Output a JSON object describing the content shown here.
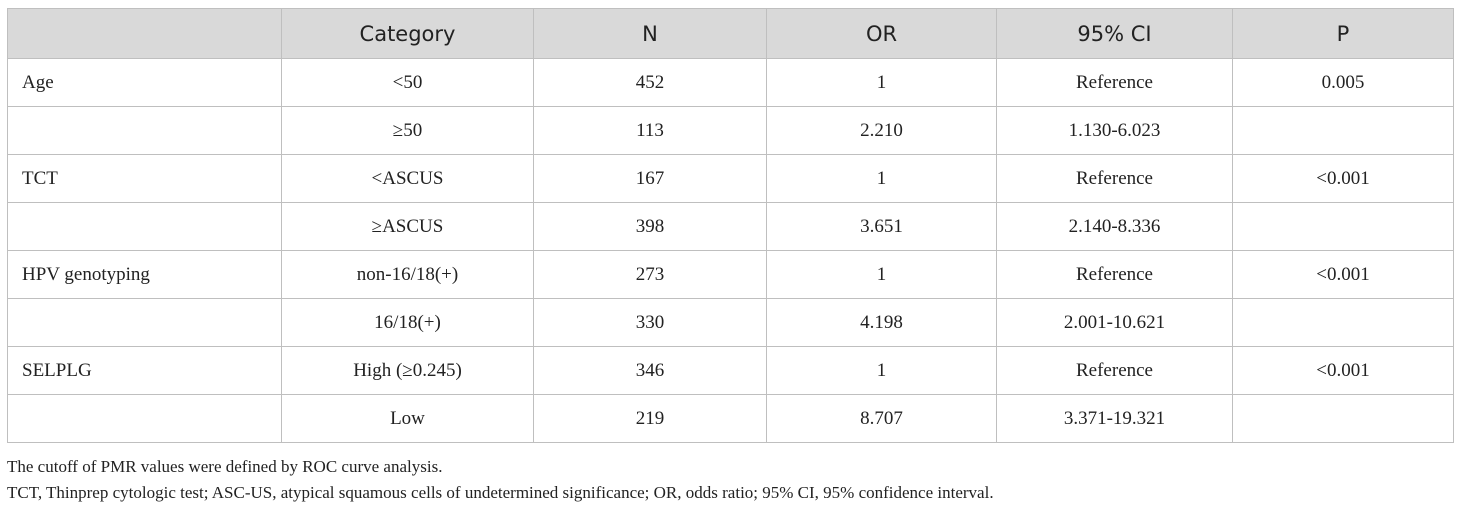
{
  "table": {
    "headers": [
      "",
      "Category",
      "N",
      "OR",
      "95% CI",
      "P"
    ],
    "rows": [
      [
        "Age",
        "<50",
        "452",
        "1",
        "Reference",
        "0.005"
      ],
      [
        "",
        "≥50",
        "113",
        "2.210",
        "1.130-6.023",
        ""
      ],
      [
        "TCT",
        "<ASCUS",
        "167",
        "1",
        "Reference",
        "<0.001"
      ],
      [
        "",
        "≥ASCUS",
        "398",
        "3.651",
        "2.140-8.336",
        ""
      ],
      [
        "HPV genotyping",
        "non-16/18(+)",
        "273",
        "1",
        "Reference",
        "<0.001"
      ],
      [
        "",
        "16/18(+)",
        "330",
        "4.198",
        "2.001-10.621",
        ""
      ],
      [
        "SELPLG",
        "High (≥0.245)",
        "346",
        "1",
        "Reference",
        "<0.001"
      ],
      [
        "",
        "Low",
        "219",
        "8.707",
        "3.371-19.321",
        ""
      ]
    ]
  },
  "notes": [
    "The cutoff of PMR values were defined by ROC curve analysis.",
    "TCT, Thinprep cytologic test; ASC-US, atypical squamous cells of undetermined significance; OR, odds ratio; 95% CI, 95% confidence interval."
  ]
}
